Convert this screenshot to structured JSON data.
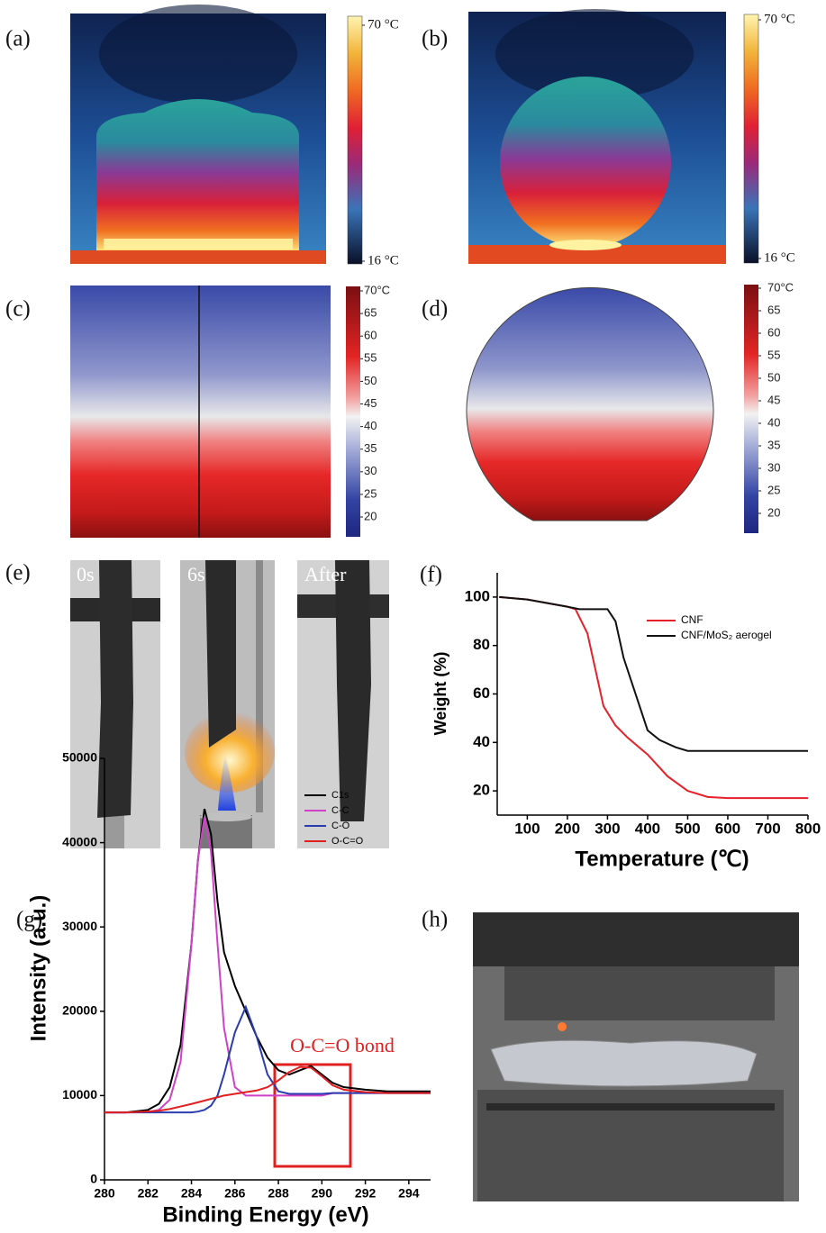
{
  "panel_labels": [
    "(a)",
    "(b)",
    "(c)",
    "(d)",
    "(e)",
    "(f)",
    "(g)",
    "(h)"
  ],
  "thermal": [
    {
      "colorbar_ticks": [
        {
          "value": 70,
          "label": "70 °C"
        },
        {
          "value": 16,
          "label": "16 °C"
        }
      ]
    },
    {
      "colorbar_ticks": [
        {
          "value": 70,
          "label": "70 °C"
        },
        {
          "value": 16,
          "label": "16 °C"
        }
      ]
    }
  ],
  "simulation": [
    {
      "colorbar_ticks": [
        {
          "value": 70,
          "label": "70°C"
        },
        65,
        60,
        55,
        50,
        45,
        40,
        35,
        30,
        25,
        20
      ]
    },
    {
      "colorbar_ticks": [
        {
          "value": 70,
          "label": "70°C"
        },
        65,
        60,
        55,
        50,
        45,
        40,
        35,
        30,
        25,
        20
      ]
    }
  ],
  "flame_test": {
    "frames": [
      "0s",
      "6s",
      "After"
    ]
  },
  "chart_data": [
    {
      "type": "line",
      "x_label": "Temperature (℃)",
      "y_label": "Weight (%)",
      "xlim": [
        25,
        800
      ],
      "ylim": [
        10,
        110
      ],
      "xticks": [
        100,
        200,
        300,
        400,
        500,
        600,
        700,
        800
      ],
      "yticks": [
        20,
        40,
        60,
        80,
        100
      ],
      "series": [
        {
          "name": "CNF",
          "color": "#e8202a",
          "x": [
            30,
            100,
            200,
            220,
            250,
            270,
            290,
            320,
            350,
            400,
            450,
            500,
            550,
            600,
            700,
            800
          ],
          "values": [
            100,
            99,
            96,
            95,
            85,
            70,
            55,
            47,
            42,
            35,
            26,
            20,
            17.5,
            17,
            17,
            17
          ]
        },
        {
          "name": "CNF/MoS₂ aerogel",
          "color": "#111111",
          "x": [
            30,
            100,
            200,
            230,
            300,
            320,
            340,
            360,
            380,
            400,
            430,
            470,
            500,
            600,
            700,
            800
          ],
          "values": [
            100,
            99,
            96,
            95,
            95,
            90,
            75,
            65,
            55,
            45,
            41,
            38,
            36.5,
            36.5,
            36.5,
            36.5
          ]
        }
      ]
    },
    {
      "type": "line",
      "x_label": "Binding Energy (eV)",
      "y_label": "Intensity (a.u.)",
      "annotation": "O-C=O bond",
      "xlim": [
        280,
        295
      ],
      "ylim": [
        0,
        50000
      ],
      "xticks": [
        280,
        282,
        284,
        286,
        288,
        290,
        292,
        294
      ],
      "yticks": [
        0,
        10000,
        20000,
        30000,
        40000,
        50000
      ],
      "series": [
        {
          "name": "C1s",
          "color": "#000000",
          "x": [
            280,
            281,
            282,
            282.5,
            283,
            283.5,
            284,
            284.3,
            284.6,
            284.9,
            285.2,
            285.5,
            286,
            286.5,
            287,
            287.5,
            288,
            288.5,
            289,
            289.5,
            290,
            290.5,
            291,
            292,
            293,
            294,
            295
          ],
          "values": [
            8000,
            8000,
            8300,
            9000,
            11000,
            16000,
            28000,
            38000,
            44000,
            41000,
            33000,
            27000,
            23000,
            20000,
            17000,
            14500,
            13000,
            12500,
            13000,
            13500,
            12500,
            11500,
            11000,
            10700,
            10500,
            10500,
            10500
          ]
        },
        {
          "name": "C-C",
          "color": "#d040c8",
          "x": [
            280,
            281,
            282,
            282.5,
            283,
            283.5,
            284,
            284.3,
            284.6,
            284.9,
            285.2,
            285.5,
            286,
            286.5,
            287,
            287.5,
            288,
            288.5,
            289,
            289.5,
            290,
            290.5,
            291,
            292,
            293,
            294,
            295
          ],
          "values": [
            8000,
            8000,
            8050,
            8300,
            9500,
            14000,
            28000,
            38000,
            43000,
            39000,
            28000,
            18000,
            11000,
            10000,
            10000,
            10000,
            10000,
            10000,
            10000,
            10000,
            10000,
            10300,
            10300,
            10300,
            10300,
            10300,
            10300
          ]
        },
        {
          "name": "C-O",
          "color": "#2a3cb0",
          "x": [
            280,
            281,
            282,
            282.5,
            283,
            283.5,
            284,
            284.3,
            284.6,
            284.9,
            285.2,
            285.5,
            286,
            286.5,
            287,
            287.5,
            288,
            288.5,
            289,
            289.5,
            290,
            290.5,
            291,
            292,
            293,
            294,
            295
          ],
          "values": [
            8000,
            8000,
            8000,
            8000,
            8000,
            8000,
            8000,
            8100,
            8300,
            8800,
            10000,
            12500,
            17500,
            20500,
            17000,
            12500,
            10500,
            10200,
            10200,
            10200,
            10200,
            10300,
            10300,
            10300,
            10300,
            10300,
            10300
          ]
        },
        {
          "name": "O-C=O",
          "color": "#e02020",
          "x": [
            280,
            281,
            282,
            282.5,
            283,
            283.5,
            284,
            284.3,
            284.6,
            284.9,
            285.2,
            285.5,
            286,
            286.5,
            287,
            287.5,
            288,
            288.5,
            289,
            289.5,
            290,
            290.5,
            291,
            292,
            293,
            294,
            295
          ],
          "values": [
            8000,
            8000,
            8100,
            8200,
            8400,
            8700,
            9000,
            9200,
            9400,
            9600,
            9800,
            10000,
            10200,
            10400,
            10600,
            11000,
            11800,
            12800,
            13400,
            13300,
            12300,
            11200,
            10700,
            10400,
            10300,
            10300,
            10300
          ]
        }
      ]
    }
  ]
}
